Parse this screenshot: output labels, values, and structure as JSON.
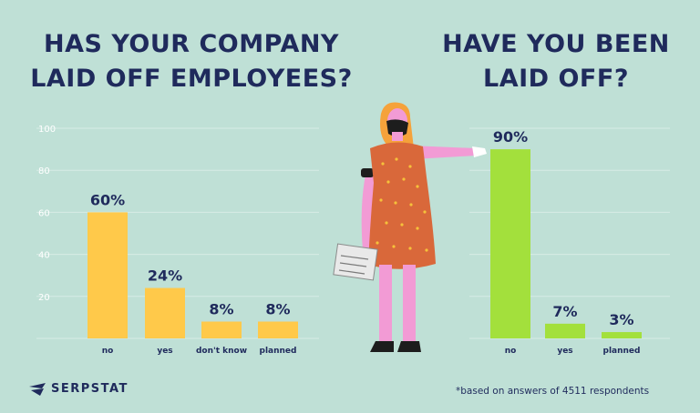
{
  "chart_data": [
    {
      "type": "bar",
      "title": "HAS YOUR COMPANY\nLAID OFF EMPLOYEES?",
      "categories": [
        "no",
        "yes",
        "don't know",
        "planned"
      ],
      "values": [
        60,
        24,
        8,
        8
      ],
      "value_labels": [
        "60%",
        "24%",
        "8%",
        "8%"
      ],
      "yticks": [
        "20",
        "40",
        "60",
        "80",
        "100"
      ],
      "ylim": [
        0,
        100
      ],
      "grid": true,
      "color": "#ffc94a"
    },
    {
      "type": "bar",
      "title": "HAVE YOU BEEN\nLAID OFF?",
      "categories": [
        "no",
        "yes",
        "planned"
      ],
      "values": [
        90,
        7,
        3
      ],
      "value_labels": [
        "90%",
        "7%",
        "3%"
      ],
      "ylim": [
        0,
        100
      ],
      "grid": true,
      "color": "#a3e03c"
    }
  ],
  "brand": {
    "name": "SERPSTAT",
    "icon": "serpstat-logo-icon"
  },
  "footnote": "*based on answers of 4511 respondents",
  "colors": {
    "background": "#bfe0d6",
    "text": "#1f2a5c",
    "grid": "#d7ece5"
  }
}
